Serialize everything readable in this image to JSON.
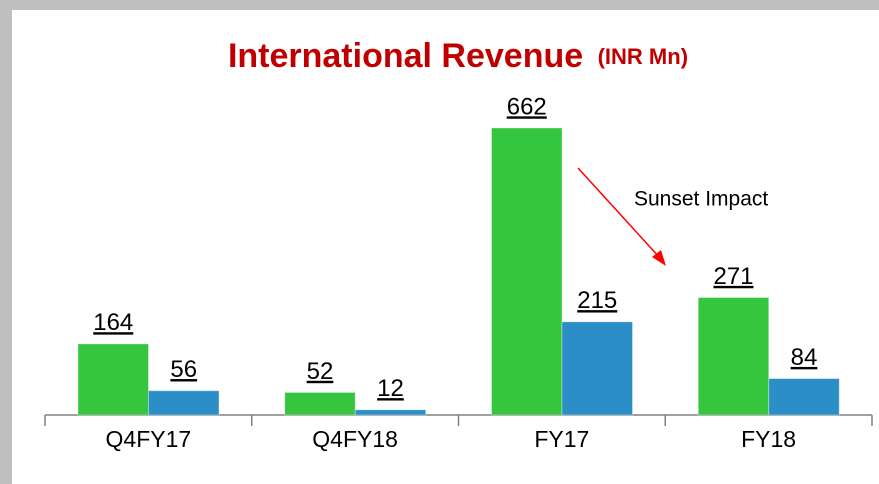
{
  "chart_data": {
    "type": "bar",
    "title": "International Revenue",
    "subtitle": "(INR Mn)",
    "categories": [
      "Q4FY17",
      "Q4FY18",
      "FY17",
      "FY18"
    ],
    "series": [
      {
        "color": "#35c53f",
        "values": [
          164,
          52,
          662,
          271
        ]
      },
      {
        "color": "#2b8ec6",
        "values": [
          56,
          12,
          215,
          84
        ]
      }
    ],
    "annotations": [
      "Sunset Impact"
    ],
    "annotation_color": "#ff0000",
    "title_color": "#c00000"
  }
}
